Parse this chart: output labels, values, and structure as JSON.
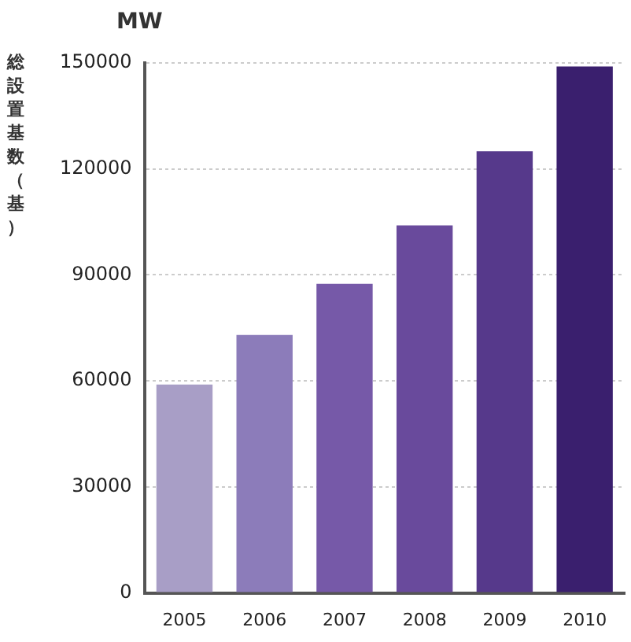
{
  "chart_data": {
    "type": "bar",
    "ylabel": "総設置基数（基）",
    "annotations": [
      "MW"
    ],
    "categories": [
      "2005",
      "2006",
      "2007",
      "2008",
      "2009",
      "2010"
    ],
    "values": [
      59000,
      73000,
      87500,
      104000,
      125000,
      149000
    ],
    "colors": [
      "#a89ec6",
      "#8c7cba",
      "#7659a8",
      "#694a9c",
      "#56398b",
      "#3a1f6e"
    ],
    "ylim": [
      0,
      150000
    ],
    "yticks": [
      0,
      30000,
      60000,
      90000,
      120000,
      150000
    ],
    "grid": "y",
    "legend": false
  }
}
